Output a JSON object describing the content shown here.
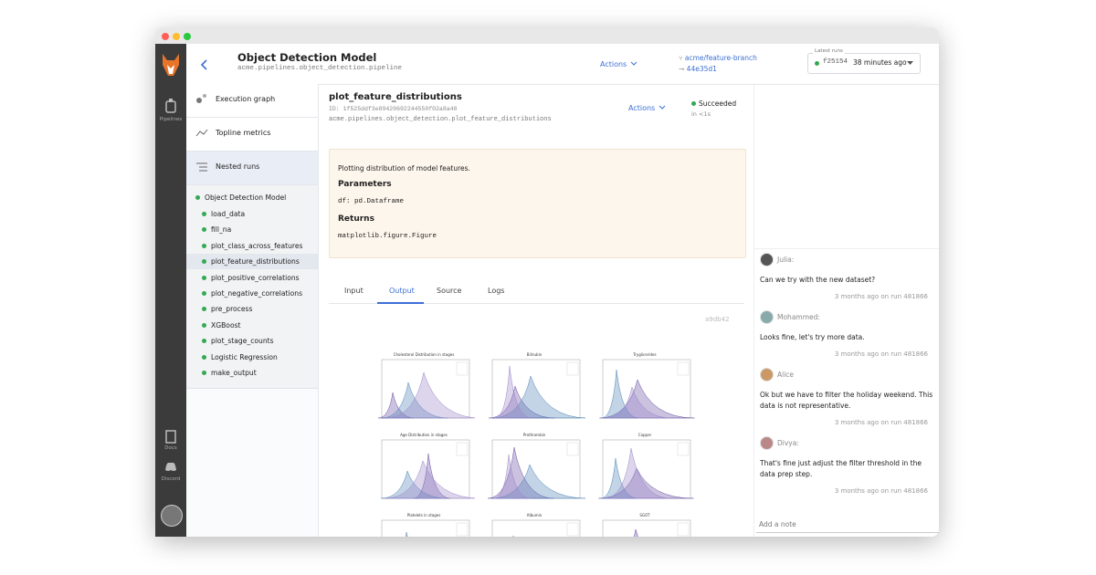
{
  "sidebar": [
    "Pipelines",
    "Docs",
    "Discord"
  ],
  "header": {
    "title": "Object Detection Model",
    "module": "acme.pipelines.object_detection.pipeline",
    "actions": "Actions",
    "branch": "acme/feature-branch",
    "commit": "44e35d1",
    "latest_runs_label": "Latest runs",
    "run_id": "f25154",
    "run_time": "38 minutes ago"
  },
  "nav": [
    "Execution graph",
    "Topline metrics",
    "Nested runs"
  ],
  "runs_tree": {
    "root": "Object Detection Model",
    "children": [
      "load_data",
      "fill_na",
      "plot_class_across_features",
      "plot_feature_distributions",
      "plot_positive_correlations",
      "plot_negative_correlations",
      "pre_process",
      "XGBoost",
      "plot_stage_counts",
      "Logistic Regression",
      "make_output"
    ]
  },
  "run": {
    "name": "plot_feature_distributions",
    "id": "ID: 1f525ddf3e89420692244550f02a8a40",
    "path": "acme.pipelines.object_detection.plot_feature_distributions",
    "actions": "Actions",
    "status": "Succeeded",
    "duration": "in <1s"
  },
  "docstring": {
    "summary": "Plotting distribution of model features.",
    "parameters_heading": "Parameters",
    "parameters": "df: pd.Dataframe",
    "returns_heading": "Returns",
    "returns": "matplotlib.figure.Figure"
  },
  "tabs": [
    "Input",
    "Output",
    "Source",
    "Logs"
  ],
  "artifact_hash": "a9db42",
  "figure_titles": [
    "Cholesterol Distribution in stages",
    "Bilirubin",
    "Tryglicerides",
    "Age Distribution in stages",
    "Prothrombin",
    "Copper",
    "Platelets in stages",
    "Albumin",
    "SGOT"
  ],
  "comments": [
    {
      "author": "Julia:",
      "text": "Can we try with the new dataset?",
      "meta": "3 months ago on run 481866"
    },
    {
      "author": "Mohammed:",
      "text": "Looks fine, let's try more data.",
      "meta": "3 months ago on run 481866"
    },
    {
      "author": "Alice",
      "text": "Ok but we have to filter the holiday weekend. This data is not representative.",
      "meta": "3 months ago on run 481866"
    },
    {
      "author": "Divya:",
      "text": "That's fine just adjust the filter threshold in the data prep step.",
      "meta": "3 months ago on run 481866"
    }
  ],
  "add_note": "Add a note"
}
